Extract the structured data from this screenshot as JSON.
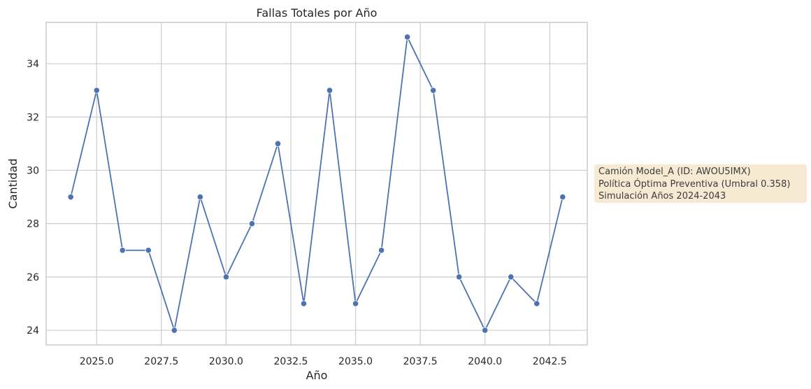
{
  "chart_data": {
    "type": "line",
    "title": "Fallas Totales por Año",
    "xlabel": "Año",
    "ylabel": "Cantidad",
    "x": [
      2024,
      2025,
      2026,
      2027,
      2028,
      2029,
      2030,
      2031,
      2032,
      2033,
      2034,
      2035,
      2036,
      2037,
      2038,
      2039,
      2040,
      2041,
      2042,
      2043
    ],
    "series": [
      {
        "values": [
          29,
          33,
          27,
          27,
          24,
          29,
          26,
          28,
          31,
          25,
          33,
          25,
          27,
          35,
          33,
          26,
          24,
          26,
          25,
          29
        ]
      }
    ],
    "xlim": [
      2023.05,
      2043.95
    ],
    "ylim": [
      23.45,
      35.55
    ],
    "xticks": [
      "2025.0",
      "2027.5",
      "2030.0",
      "2032.5",
      "2035.0",
      "2037.5",
      "2040.0",
      "2042.5"
    ],
    "xtick_values": [
      2025.0,
      2027.5,
      2030.0,
      2032.5,
      2035.0,
      2037.5,
      2040.0,
      2042.5
    ],
    "yticks": [
      "24",
      "26",
      "28",
      "30",
      "32",
      "34"
    ],
    "ytick_values": [
      24,
      26,
      28,
      30,
      32,
      34
    ],
    "grid": true,
    "colors": {
      "line": "#4c72b0",
      "grid": "#cccccc",
      "frame": "#cccccc",
      "annotation_bg": "#f6e8cf"
    }
  },
  "annotation": {
    "lines": [
      "Camión Model_A (ID: AWOU5IMX)",
      "Política Óptima Preventiva (Umbral 0.358)",
      "Simulación Años 2024-2043"
    ]
  }
}
